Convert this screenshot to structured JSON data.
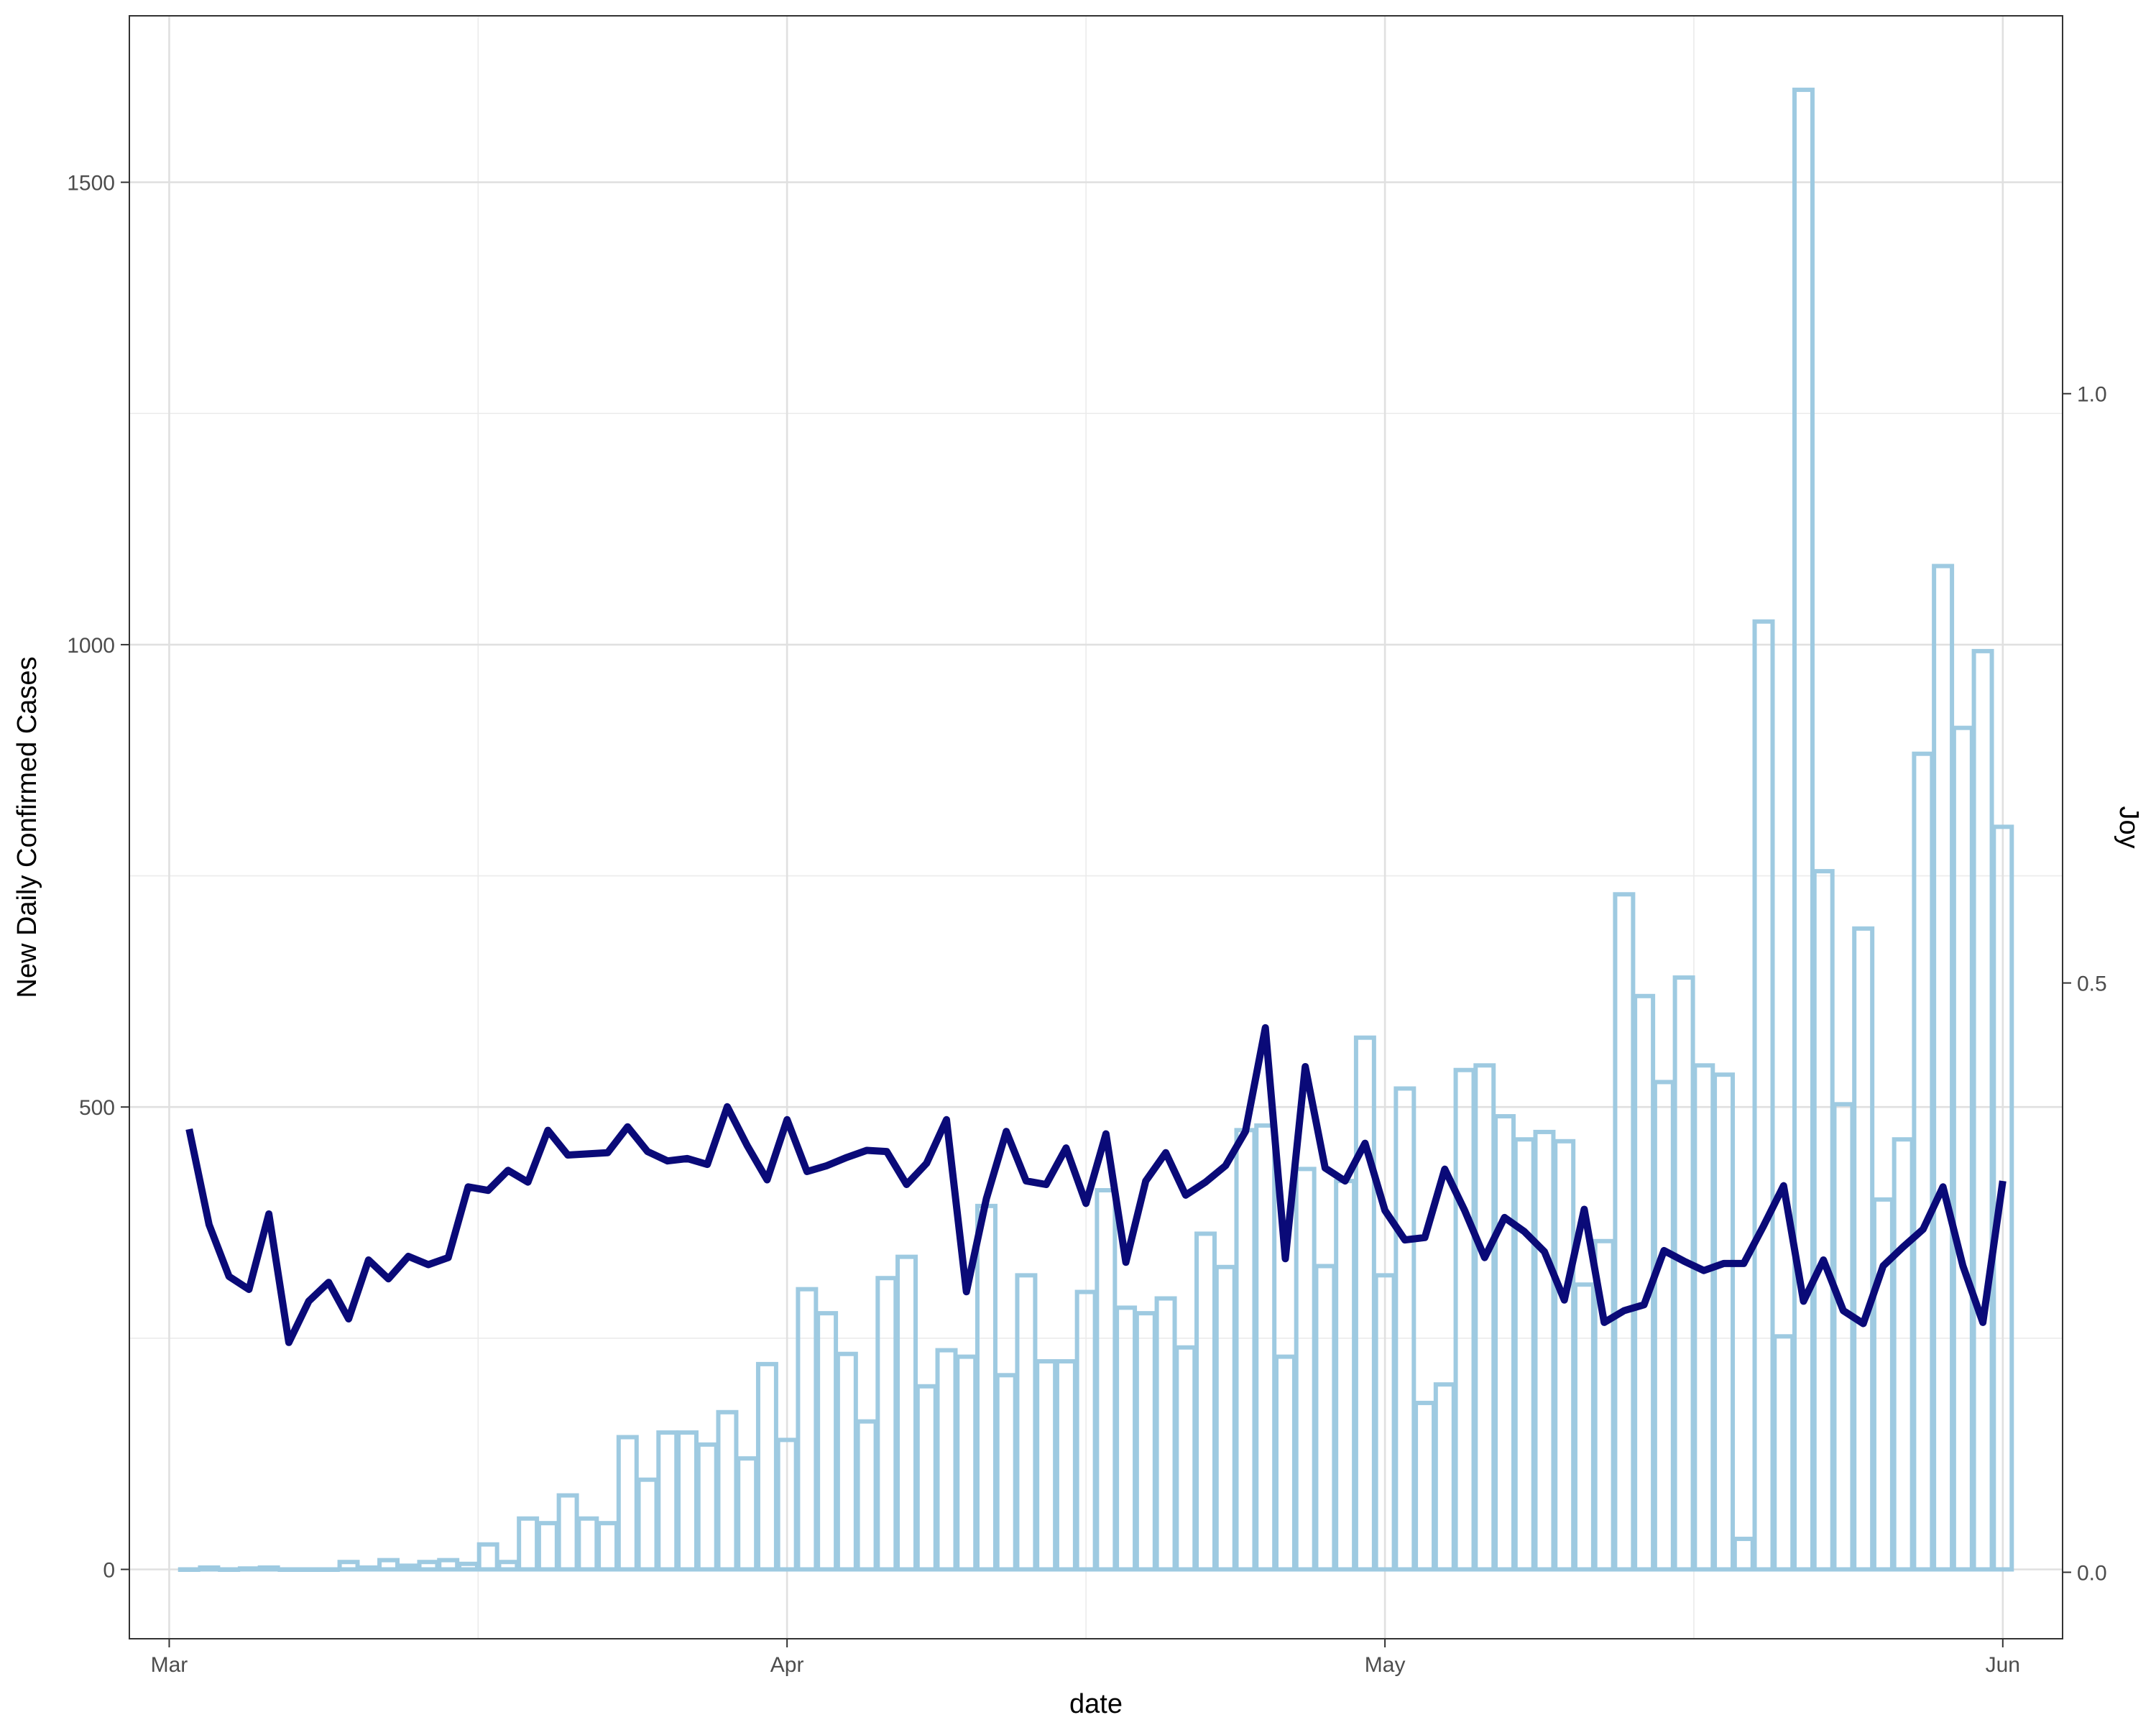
{
  "chart_data": {
    "type": "bar",
    "xlabel": "date",
    "ylabel": "New Daily Confirmed Cases",
    "y2label": "Joy",
    "x_ticks": [
      {
        "label": "Mar",
        "date": "2020-03-01"
      },
      {
        "label": "Apr",
        "date": "2020-04-01"
      },
      {
        "label": "May",
        "date": "2020-05-01"
      },
      {
        "label": "Jun",
        "date": "2020-06-01"
      }
    ],
    "y_ticks": [
      "0",
      "500",
      "1000",
      "1500"
    ],
    "y2_ticks": [
      "0.0",
      "0.5",
      "1.0"
    ],
    "xlim": [
      "2020-02-28",
      "2020-06-04"
    ],
    "ylim": [
      -75,
      1680
    ],
    "y2lim": [
      -0.0564,
      1.3206
    ],
    "grid": true,
    "series": [
      {
        "type": "bar",
        "axis": "left",
        "color": "#9ecae1",
        "x": [
          "2020-03-02",
          "2020-03-03",
          "2020-03-04",
          "2020-03-05",
          "2020-03-06",
          "2020-03-07",
          "2020-03-08",
          "2020-03-09",
          "2020-03-10",
          "2020-03-11",
          "2020-03-12",
          "2020-03-13",
          "2020-03-14",
          "2020-03-15",
          "2020-03-16",
          "2020-03-17",
          "2020-03-18",
          "2020-03-19",
          "2020-03-20",
          "2020-03-21",
          "2020-03-22",
          "2020-03-23",
          "2020-03-24",
          "2020-03-25",
          "2020-03-26",
          "2020-03-27",
          "2020-03-28",
          "2020-03-29",
          "2020-03-30",
          "2020-03-31",
          "2020-04-01",
          "2020-04-02",
          "2020-04-03",
          "2020-04-04",
          "2020-04-05",
          "2020-04-06",
          "2020-04-07",
          "2020-04-08",
          "2020-04-09",
          "2020-04-10",
          "2020-04-11",
          "2020-04-12",
          "2020-04-13",
          "2020-04-14",
          "2020-04-15",
          "2020-04-16",
          "2020-04-17",
          "2020-04-18",
          "2020-04-19",
          "2020-04-20",
          "2020-04-21",
          "2020-04-22",
          "2020-04-23",
          "2020-04-24",
          "2020-04-25",
          "2020-04-26",
          "2020-04-27",
          "2020-04-28",
          "2020-04-29",
          "2020-04-30",
          "2020-05-01",
          "2020-05-02",
          "2020-05-03",
          "2020-05-04",
          "2020-05-05",
          "2020-05-06",
          "2020-05-07",
          "2020-05-08",
          "2020-05-09",
          "2020-05-10",
          "2020-05-11",
          "2020-05-12",
          "2020-05-13",
          "2020-05-14",
          "2020-05-15",
          "2020-05-16",
          "2020-05-17",
          "2020-05-18",
          "2020-05-19",
          "2020-05-20",
          "2020-05-21",
          "2020-05-22",
          "2020-05-23",
          "2020-05-24",
          "2020-05-25",
          "2020-05-26",
          "2020-05-27",
          "2020-05-28",
          "2020-05-29",
          "2020-05-30",
          "2020-05-31",
          "2020-06-01"
        ],
        "values": [
          0,
          2,
          0,
          1,
          2,
          0,
          0,
          0,
          8,
          2,
          10,
          4,
          8,
          10,
          6,
          27,
          8,
          55,
          50,
          80,
          55,
          50,
          143,
          97,
          148,
          148,
          135,
          170,
          120,
          222,
          140,
          303,
          277,
          233,
          160,
          315,
          338,
          198,
          237,
          230,
          393,
          210,
          318,
          225,
          225,
          300,
          410,
          283,
          277,
          293,
          240,
          363,
          327,
          475,
          480,
          230,
          433,
          328,
          420,
          575,
          318,
          520,
          180,
          200,
          540,
          545,
          490,
          465,
          473,
          463,
          308,
          355,
          730,
          620,
          527,
          640,
          545,
          535,
          33,
          1025,
          252,
          1600,
          755,
          503,
          693,
          400,
          465,
          882,
          1085,
          910,
          993,
          803
        ]
      },
      {
        "type": "line",
        "axis": "right",
        "color": "#0a0a78",
        "x": [
          "2020-03-02",
          "2020-03-03",
          "2020-03-04",
          "2020-03-05",
          "2020-03-06",
          "2020-03-07",
          "2020-03-08",
          "2020-03-09",
          "2020-03-10",
          "2020-03-11",
          "2020-03-12",
          "2020-03-13",
          "2020-03-14",
          "2020-03-15",
          "2020-03-16",
          "2020-03-17",
          "2020-03-18",
          "2020-03-19",
          "2020-03-20",
          "2020-03-21",
          "2020-03-22",
          "2020-03-23",
          "2020-03-24",
          "2020-03-25",
          "2020-03-26",
          "2020-03-27",
          "2020-03-28",
          "2020-03-29",
          "2020-03-30",
          "2020-03-31",
          "2020-04-01",
          "2020-04-02",
          "2020-04-03",
          "2020-04-04",
          "2020-04-05",
          "2020-04-06",
          "2020-04-07",
          "2020-04-08",
          "2020-04-09",
          "2020-04-10",
          "2020-04-11",
          "2020-04-12",
          "2020-04-13",
          "2020-04-14",
          "2020-04-15",
          "2020-04-16",
          "2020-04-17",
          "2020-04-18",
          "2020-04-19",
          "2020-04-20",
          "2020-04-21",
          "2020-04-22",
          "2020-04-23",
          "2020-04-24",
          "2020-04-25",
          "2020-04-26",
          "2020-04-27",
          "2020-04-28",
          "2020-04-29",
          "2020-04-30",
          "2020-05-01",
          "2020-05-02",
          "2020-05-03",
          "2020-05-04",
          "2020-05-05",
          "2020-05-06",
          "2020-05-07",
          "2020-05-08",
          "2020-05-09",
          "2020-05-10",
          "2020-05-11",
          "2020-05-12",
          "2020-05-13",
          "2020-05-14",
          "2020-05-15",
          "2020-05-16",
          "2020-05-17",
          "2020-05-18",
          "2020-05-19",
          "2020-05-20",
          "2020-05-21",
          "2020-05-22",
          "2020-05-23",
          "2020-05-24",
          "2020-05-25",
          "2020-05-26",
          "2020-05-27",
          "2020-05-28",
          "2020-05-29",
          "2020-05-30",
          "2020-05-31",
          "2020-06-01"
        ],
        "values": [
          0.376,
          0.295,
          0.251,
          0.24,
          0.304,
          0.195,
          0.23,
          0.246,
          0.215,
          0.265,
          0.249,
          0.268,
          0.261,
          0.267,
          0.327,
          0.324,
          0.341,
          0.331,
          0.375,
          0.354,
          0.355,
          0.356,
          0.378,
          0.357,
          0.349,
          0.351,
          0.346,
          0.395,
          0.362,
          0.333,
          0.384,
          0.34,
          0.345,
          0.352,
          0.358,
          0.357,
          0.329,
          0.347,
          0.384,
          0.238,
          0.317,
          0.374,
          0.332,
          0.329,
          0.36,
          0.313,
          0.372,
          0.263,
          0.332,
          0.356,
          0.32,
          0.331,
          0.345,
          0.374,
          0.462,
          0.266,
          0.429,
          0.343,
          0.332,
          0.364,
          0.307,
          0.282,
          0.284,
          0.342,
          0.307,
          0.267,
          0.301,
          0.289,
          0.272,
          0.231,
          0.308,
          0.212,
          0.222,
          0.227,
          0.273,
          0.264,
          0.256,
          0.262,
          0.262,
          0.294,
          0.328,
          0.23,
          0.265,
          0.222,
          0.211,
          0.26,
          0.276,
          0.291,
          0.327,
          0.26,
          0.212,
          0.332
        ]
      }
    ]
  }
}
